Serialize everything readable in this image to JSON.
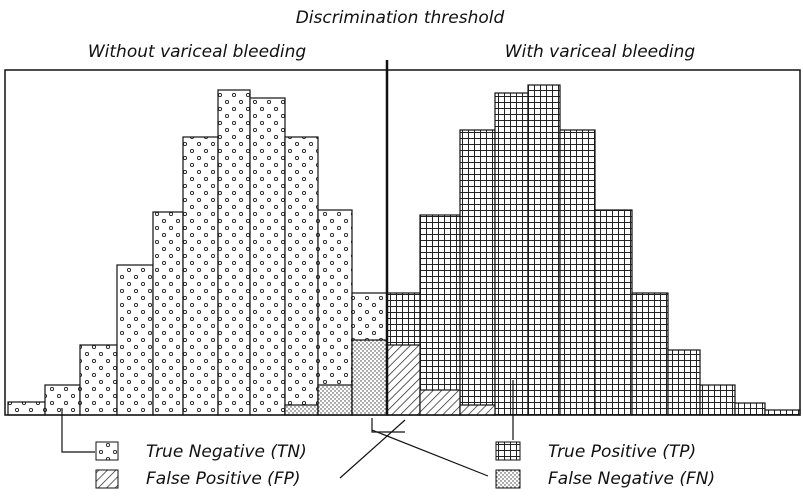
{
  "title": "Discrimination threshold",
  "groups": {
    "left": "Without variceal bleeding",
    "right": "With variceal bleeding"
  },
  "legend": {
    "tn": "True Negative (TN)",
    "fp": "False Positive (FP)",
    "tp": "True Positive (TP)",
    "fn": "False Negative (FN)"
  }
}
